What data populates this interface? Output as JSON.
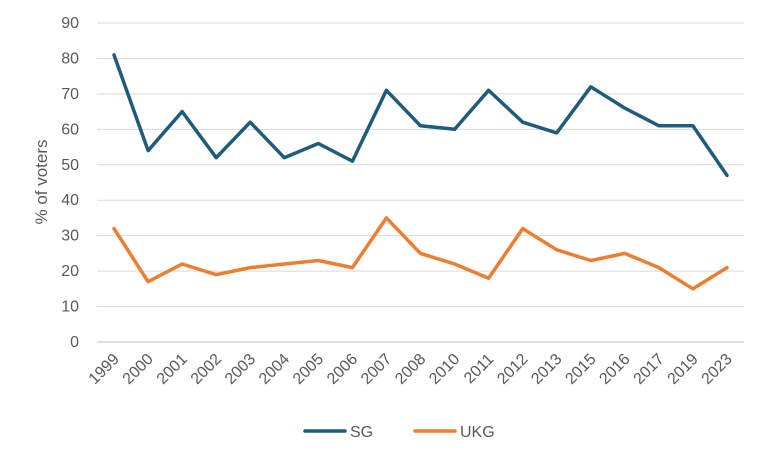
{
  "chart_data": {
    "type": "line",
    "title": "",
    "xlabel": "",
    "ylabel": "% of voters",
    "ylim": [
      0,
      90
    ],
    "yticks": [
      0,
      10,
      20,
      30,
      40,
      50,
      60,
      70,
      80,
      90
    ],
    "grid": true,
    "legend_position": "bottom",
    "categories": [
      "1999",
      "2000",
      "2001",
      "2002",
      "2003",
      "2004",
      "2005",
      "2006",
      "2007",
      "2008",
      "2010",
      "2011",
      "2012",
      "2013",
      "2015",
      "2016",
      "2017",
      "2019",
      "2023"
    ],
    "series": [
      {
        "name": "SG",
        "color": "#1f5b7a",
        "values": [
          81,
          54,
          65,
          52,
          62,
          52,
          56,
          51,
          71,
          61,
          60,
          71,
          62,
          59,
          72,
          66,
          61,
          61,
          47
        ]
      },
      {
        "name": "UKG",
        "color": "#ed7d31",
        "values": [
          32,
          17,
          22,
          19,
          21,
          22,
          23,
          21,
          35,
          25,
          22,
          18,
          32,
          26,
          23,
          25,
          21,
          15,
          21
        ]
      }
    ]
  }
}
